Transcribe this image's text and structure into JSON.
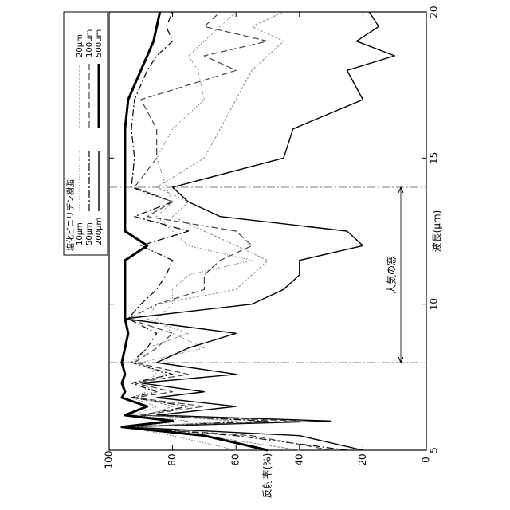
{
  "chart_data": {
    "type": "line",
    "x_label": "波長(μm)",
    "y_label": "反射率(%)",
    "legend_title": "塩化ビニリデン樹脂",
    "x": [
      5,
      5.5,
      5.8,
      6,
      6.2,
      6.5,
      6.8,
      7,
      7.3,
      7.6,
      8,
      8.5,
      9,
      9.5,
      10,
      10.5,
      11,
      11.5,
      12,
      12.5,
      13,
      13.5,
      14,
      15,
      16,
      17,
      18,
      18.5,
      19,
      19.5,
      20
    ],
    "xlim": [
      5,
      20
    ],
    "xticks": [
      5,
      10,
      15,
      20
    ],
    "ylim": [
      0,
      100
    ],
    "yticks": [
      0,
      20,
      40,
      60,
      80,
      100
    ],
    "window": {
      "range": [
        8,
        14
      ],
      "label": "大気の窓"
    },
    "series": [
      {
        "name": "10μm",
        "color": "#777777",
        "dash": "1.5 2",
        "width": 1,
        "values": [
          60,
          80,
          95,
          75,
          92,
          85,
          93,
          88,
          90,
          85,
          90,
          70,
          80,
          85,
          80,
          80,
          75,
          55,
          75,
          80,
          85,
          80,
          82,
          85,
          80,
          70,
          72,
          75,
          70,
          65,
          60
        ]
      },
      {
        "name": "50μm",
        "color": "#000000",
        "dash": "9 3 2 3",
        "width": 1.2,
        "values": [
          25,
          60,
          95,
          50,
          90,
          75,
          93,
          85,
          93,
          80,
          93,
          88,
          85,
          94,
          90,
          85,
          82,
          80,
          90,
          75,
          92,
          80,
          93,
          92,
          93,
          92,
          88,
          85,
          80,
          82,
          80
        ]
      },
      {
        "name": "200μm",
        "color": "#000000",
        "dash": "none",
        "width": 1.4,
        "values": [
          20,
          40,
          95,
          30,
          85,
          60,
          85,
          70,
          90,
          60,
          85,
          75,
          60,
          95,
          55,
          45,
          40,
          40,
          20,
          25,
          65,
          75,
          80,
          45,
          42,
          20,
          25,
          10,
          22,
          15,
          18
        ]
      },
      {
        "name": "20μm",
        "color": "#888888",
        "dash": "3 2",
        "width": 1,
        "values": [
          40,
          70,
          92,
          60,
          88,
          80,
          90,
          85,
          90,
          82,
          92,
          88,
          75,
          88,
          85,
          60,
          55,
          50,
          60,
          70,
          80,
          75,
          85,
          70,
          65,
          60,
          55,
          50,
          45,
          55,
          45
        ]
      },
      {
        "name": "100μm",
        "color": "#444444",
        "dash": "8 4",
        "width": 1.2,
        "values": [
          30,
          55,
          96,
          40,
          90,
          70,
          92,
          80,
          92,
          75,
          92,
          85,
          80,
          94,
          85,
          70,
          70,
          65,
          55,
          60,
          88,
          80,
          92,
          85,
          85,
          90,
          60,
          70,
          50,
          70,
          65
        ]
      },
      {
        "name": "500μm",
        "color": "#000000",
        "dash": "none",
        "width": 3,
        "values": [
          50,
          70,
          96,
          80,
          95,
          88,
          96,
          95,
          96,
          95,
          96,
          95,
          94,
          95,
          95,
          95,
          95,
          95,
          88,
          95,
          95,
          95,
          95,
          95,
          95,
          94,
          90,
          88,
          86,
          85,
          84
        ]
      }
    ]
  }
}
